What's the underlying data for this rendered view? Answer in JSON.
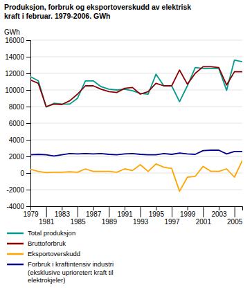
{
  "chart_data": {
    "type": "line",
    "title": "Produksjon, forbruk og eksportoverskudd av elektrisk\nkraft i februar. 1979-2006. GWh",
    "y_label": "GWh",
    "x": [
      1979,
      1980,
      1981,
      1982,
      1983,
      1984,
      1985,
      1986,
      1987,
      1988,
      1989,
      1990,
      1991,
      1992,
      1993,
      1994,
      1995,
      1996,
      1997,
      1998,
      1999,
      2000,
      2001,
      2002,
      2003,
      2004,
      2005,
      2006
    ],
    "series": [
      {
        "name": "Total produksjon",
        "color": "#009B8D",
        "values": [
          11600,
          11100,
          7950,
          8400,
          8300,
          8300,
          9000,
          11100,
          11100,
          10400,
          10100,
          10000,
          10100,
          9900,
          9600,
          9500,
          11900,
          10500,
          10500,
          8600,
          10500,
          12700,
          12600,
          12600,
          12600,
          9950,
          13600,
          13400
        ]
      },
      {
        "name": "Bruttoforbruk",
        "color": "#8B0000",
        "values": [
          11200,
          10800,
          8000,
          8300,
          8250,
          8700,
          9500,
          10500,
          10500,
          10100,
          9800,
          9700,
          10200,
          10300,
          9500,
          9800,
          10800,
          10500,
          10500,
          12400,
          10700,
          12000,
          12800,
          12800,
          12700,
          10600,
          12200,
          12200
        ]
      },
      {
        "name": "Eksportoverskudd",
        "color": "#FFA500",
        "values": [
          450,
          200,
          50,
          100,
          100,
          150,
          100,
          500,
          200,
          200,
          200,
          100,
          500,
          300,
          1000,
          200,
          1100,
          700,
          550,
          -2200,
          -500,
          -400,
          800,
          200,
          200,
          500,
          -500,
          1500
        ]
      },
      {
        "name": "Forbruk i kraftintensiv industri\n(eksklusive uprioretert kraft til\nelektrokjeler)",
        "color": "#00008B",
        "values": [
          2200,
          2250,
          2200,
          2050,
          2200,
          2350,
          2300,
          2350,
          2300,
          2350,
          2250,
          2200,
          2300,
          2350,
          2250,
          2200,
          2200,
          2350,
          2250,
          2400,
          2300,
          2250,
          2700,
          2750,
          2750,
          2300,
          2600,
          2600
        ]
      }
    ],
    "xlim": [
      1979,
      2006
    ],
    "ylim": [
      -4000,
      16000
    ],
    "xticks": [
      1979,
      1981,
      1983,
      1985,
      1987,
      1989,
      1991,
      1993,
      1995,
      1997,
      1999,
      2001,
      2003,
      2005
    ],
    "yticks": [
      -4000,
      -2000,
      0,
      2000,
      4000,
      6000,
      8000,
      10000,
      12000,
      14000,
      16000
    ],
    "grid": true,
    "legend": "bottom"
  }
}
